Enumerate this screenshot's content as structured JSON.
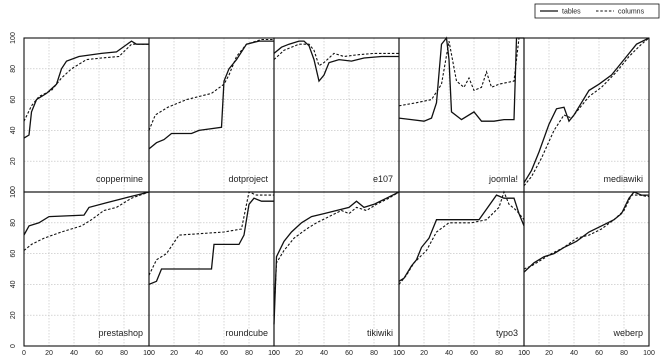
{
  "chart_data": {
    "type": "line",
    "layout": "small-multiples",
    "grid": true,
    "legend_placement": "top-right",
    "legend": [
      {
        "key": "tables",
        "label": "tables",
        "style": "solid"
      },
      {
        "key": "columns",
        "label": "columns",
        "style": "dashed"
      }
    ],
    "xlim": [
      0,
      100
    ],
    "ylim": [
      0,
      100
    ],
    "xticks": [
      0,
      20,
      40,
      60,
      80,
      100
    ],
    "yticks": [
      0,
      20,
      40,
      60,
      80,
      100
    ],
    "panels": [
      {
        "label": "coppermine",
        "tables": [
          [
            0,
            35
          ],
          [
            4,
            37
          ],
          [
            6,
            52
          ],
          [
            10,
            60
          ],
          [
            18,
            64
          ],
          [
            26,
            70
          ],
          [
            30,
            80
          ],
          [
            34,
            85
          ],
          [
            44,
            88
          ],
          [
            62,
            90
          ],
          [
            74,
            91
          ],
          [
            86,
            98
          ],
          [
            90,
            96
          ],
          [
            100,
            96
          ]
        ],
        "columns": [
          [
            0,
            46
          ],
          [
            6,
            56
          ],
          [
            12,
            62
          ],
          [
            22,
            66
          ],
          [
            30,
            74
          ],
          [
            38,
            80
          ],
          [
            50,
            86
          ],
          [
            62,
            87
          ],
          [
            76,
            88
          ],
          [
            86,
            96
          ],
          [
            100,
            96
          ]
        ]
      },
      {
        "label": "dotproject",
        "tables": [
          [
            0,
            28
          ],
          [
            6,
            32
          ],
          [
            12,
            34
          ],
          [
            18,
            38
          ],
          [
            34,
            38
          ],
          [
            40,
            40
          ],
          [
            58,
            42
          ],
          [
            60,
            72
          ],
          [
            64,
            80
          ],
          [
            70,
            86
          ],
          [
            78,
            96
          ],
          [
            88,
            98
          ],
          [
            100,
            98
          ]
        ],
        "columns": [
          [
            0,
            40
          ],
          [
            5,
            50
          ],
          [
            15,
            55
          ],
          [
            30,
            60
          ],
          [
            40,
            62
          ],
          [
            50,
            64
          ],
          [
            60,
            70
          ],
          [
            64,
            76
          ],
          [
            70,
            88
          ],
          [
            78,
            96
          ],
          [
            90,
            99
          ],
          [
            100,
            99
          ]
        ]
      },
      {
        "label": "e107",
        "tables": [
          [
            0,
            90
          ],
          [
            6,
            94
          ],
          [
            12,
            96
          ],
          [
            20,
            98
          ],
          [
            24,
            98
          ],
          [
            28,
            95
          ],
          [
            32,
            86
          ],
          [
            36,
            72
          ],
          [
            40,
            76
          ],
          [
            44,
            84
          ],
          [
            52,
            86
          ],
          [
            62,
            85
          ],
          [
            72,
            87
          ],
          [
            86,
            88
          ],
          [
            100,
            88
          ]
        ],
        "columns": [
          [
            0,
            86
          ],
          [
            8,
            92
          ],
          [
            14,
            94
          ],
          [
            20,
            96
          ],
          [
            28,
            96
          ],
          [
            32,
            92
          ],
          [
            36,
            82
          ],
          [
            40,
            84
          ],
          [
            48,
            90
          ],
          [
            56,
            88
          ],
          [
            66,
            89
          ],
          [
            80,
            90
          ],
          [
            100,
            90
          ]
        ]
      },
      {
        "label": "joomla!",
        "tables": [
          [
            0,
            48
          ],
          [
            10,
            47
          ],
          [
            20,
            46
          ],
          [
            26,
            48
          ],
          [
            30,
            58
          ],
          [
            34,
            96
          ],
          [
            38,
            100
          ],
          [
            40,
            86
          ],
          [
            42,
            52
          ],
          [
            50,
            47
          ],
          [
            60,
            52
          ],
          [
            66,
            46
          ],
          [
            76,
            46
          ],
          [
            84,
            47
          ],
          [
            92,
            47
          ],
          [
            94,
            100
          ],
          [
            100,
            100
          ]
        ],
        "columns": [
          [
            0,
            56
          ],
          [
            14,
            58
          ],
          [
            26,
            60
          ],
          [
            34,
            70
          ],
          [
            40,
            98
          ],
          [
            46,
            72
          ],
          [
            52,
            68
          ],
          [
            56,
            74
          ],
          [
            60,
            66
          ],
          [
            66,
            68
          ],
          [
            70,
            78
          ],
          [
            74,
            68
          ],
          [
            80,
            70
          ],
          [
            92,
            72
          ],
          [
            96,
            100
          ],
          [
            100,
            100
          ]
        ]
      },
      {
        "label": "mediawiki",
        "tables": [
          [
            0,
            6
          ],
          [
            6,
            14
          ],
          [
            12,
            26
          ],
          [
            20,
            44
          ],
          [
            26,
            54
          ],
          [
            32,
            55
          ],
          [
            36,
            46
          ],
          [
            40,
            50
          ],
          [
            46,
            58
          ],
          [
            52,
            66
          ],
          [
            60,
            70
          ],
          [
            70,
            76
          ],
          [
            80,
            86
          ],
          [
            90,
            96
          ],
          [
            100,
            100
          ]
        ],
        "columns": [
          [
            0,
            4
          ],
          [
            6,
            10
          ],
          [
            14,
            22
          ],
          [
            24,
            40
          ],
          [
            32,
            50
          ],
          [
            38,
            48
          ],
          [
            44,
            54
          ],
          [
            52,
            62
          ],
          [
            62,
            68
          ],
          [
            74,
            78
          ],
          [
            84,
            88
          ],
          [
            94,
            96
          ],
          [
            100,
            100
          ]
        ]
      },
      {
        "label": "prestashop",
        "tables": [
          [
            0,
            72
          ],
          [
            4,
            78
          ],
          [
            12,
            80
          ],
          [
            20,
            84
          ],
          [
            48,
            85
          ],
          [
            52,
            90
          ],
          [
            66,
            93
          ],
          [
            80,
            96
          ],
          [
            90,
            98
          ],
          [
            100,
            100
          ]
        ],
        "columns": [
          [
            0,
            62
          ],
          [
            6,
            66
          ],
          [
            16,
            70
          ],
          [
            30,
            74
          ],
          [
            46,
            78
          ],
          [
            54,
            82
          ],
          [
            64,
            88
          ],
          [
            74,
            90
          ],
          [
            86,
            96
          ],
          [
            100,
            100
          ]
        ]
      },
      {
        "label": "roundcube",
        "tables": [
          [
            0,
            40
          ],
          [
            6,
            42
          ],
          [
            10,
            50
          ],
          [
            46,
            50
          ],
          [
            50,
            50
          ],
          [
            52,
            66
          ],
          [
            72,
            66
          ],
          [
            76,
            72
          ],
          [
            80,
            92
          ],
          [
            84,
            96
          ],
          [
            90,
            94
          ],
          [
            100,
            94
          ]
        ],
        "columns": [
          [
            0,
            46
          ],
          [
            6,
            56
          ],
          [
            14,
            60
          ],
          [
            24,
            72
          ],
          [
            60,
            74
          ],
          [
            74,
            76
          ],
          [
            80,
            100
          ],
          [
            86,
            98
          ],
          [
            100,
            98
          ]
        ]
      },
      {
        "label": "tikiwiki",
        "tables": [
          [
            0,
            14
          ],
          [
            2,
            58
          ],
          [
            8,
            68
          ],
          [
            14,
            74
          ],
          [
            22,
            80
          ],
          [
            30,
            84
          ],
          [
            40,
            86
          ],
          [
            50,
            88
          ],
          [
            60,
            90
          ],
          [
            66,
            94
          ],
          [
            72,
            90
          ],
          [
            80,
            92
          ],
          [
            90,
            96
          ],
          [
            100,
            100
          ]
        ],
        "columns": [
          [
            0,
            20
          ],
          [
            2,
            54
          ],
          [
            8,
            62
          ],
          [
            16,
            70
          ],
          [
            26,
            76
          ],
          [
            34,
            80
          ],
          [
            44,
            84
          ],
          [
            54,
            88
          ],
          [
            60,
            86
          ],
          [
            66,
            90
          ],
          [
            74,
            88
          ],
          [
            82,
            92
          ],
          [
            92,
            96
          ],
          [
            100,
            100
          ]
        ]
      },
      {
        "label": "typo3",
        "tables": [
          [
            0,
            42
          ],
          [
            4,
            44
          ],
          [
            10,
            52
          ],
          [
            14,
            56
          ],
          [
            18,
            64
          ],
          [
            24,
            70
          ],
          [
            30,
            82
          ],
          [
            64,
            82
          ],
          [
            78,
            98
          ],
          [
            84,
            96
          ],
          [
            92,
            96
          ],
          [
            96,
            86
          ],
          [
            100,
            78
          ]
        ],
        "columns": [
          [
            0,
            40
          ],
          [
            6,
            46
          ],
          [
            12,
            54
          ],
          [
            22,
            62
          ],
          [
            30,
            74
          ],
          [
            40,
            80
          ],
          [
            58,
            80
          ],
          [
            70,
            82
          ],
          [
            80,
            90
          ],
          [
            84,
            100
          ],
          [
            88,
            92
          ],
          [
            94,
            88
          ],
          [
            100,
            82
          ]
        ]
      },
      {
        "label": "weberp",
        "tables": [
          [
            0,
            48
          ],
          [
            8,
            54
          ],
          [
            16,
            58
          ],
          [
            24,
            60
          ],
          [
            32,
            64
          ],
          [
            42,
            68
          ],
          [
            52,
            74
          ],
          [
            62,
            78
          ],
          [
            72,
            82
          ],
          [
            78,
            86
          ],
          [
            84,
            96
          ],
          [
            88,
            100
          ],
          [
            94,
            98
          ],
          [
            100,
            98
          ]
        ],
        "columns": [
          [
            0,
            50
          ],
          [
            6,
            52
          ],
          [
            14,
            56
          ],
          [
            22,
            60
          ],
          [
            32,
            64
          ],
          [
            42,
            70
          ],
          [
            52,
            72
          ],
          [
            62,
            76
          ],
          [
            72,
            82
          ],
          [
            80,
            88
          ],
          [
            86,
            98
          ],
          [
            92,
            98
          ],
          [
            100,
            97
          ]
        ]
      }
    ]
  }
}
